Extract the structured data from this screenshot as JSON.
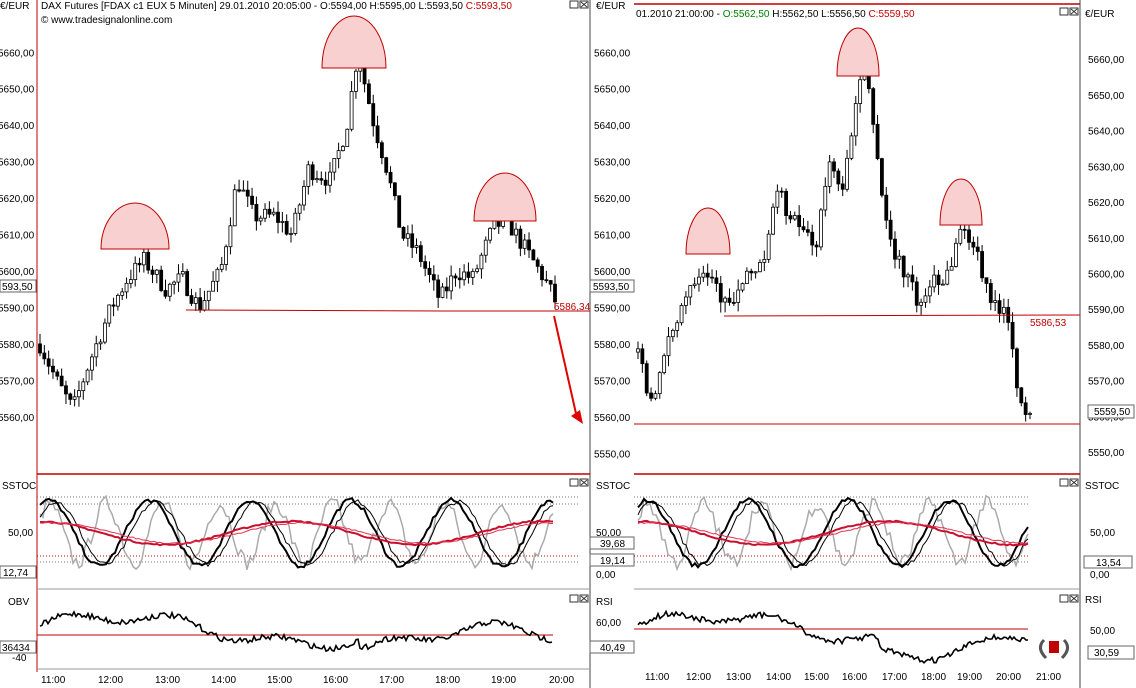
{
  "left_chart": {
    "title_prefix": "DAX Futures [FDAX c1 EUX  5 Minuten] 29.01.2010 20:05:00 - ",
    "ohlc": "O:5594,00 H:5595,00 L:5593,50",
    "close": "C:5593,50",
    "watermark": "© www.tradesignalonline.com",
    "currency": "€/EUR",
    "price_ticks": [
      "5660,00",
      "5650,00",
      "5640,00",
      "5630,00",
      "5620,00",
      "5610,00",
      "5600,00",
      "5590,00",
      "5580,00",
      "5570,00",
      "5560,00",
      "5550,00"
    ],
    "price_ticks_left": [
      "5660,00",
      "5650,00",
      "5640,00",
      "5630,00",
      "5620,00",
      "5610,00",
      "5600,00",
      "5590,00",
      "5580,00",
      "5570,00",
      "5560,00"
    ],
    "last_price_tag": "593,50",
    "last_price_tag_right": "5593,50",
    "neckline_label": "5586,34",
    "sstoc_label": "SSTOC",
    "sstoc_left_tag": "12,74",
    "sstoc_left_tick": "50,00",
    "sstoc_ticks": [
      "50,00",
      "0,00"
    ],
    "sstoc_tags": [
      "39,68",
      "19,14"
    ],
    "obv_label": "OBV",
    "obv_tag": "36434",
    "obv_tick": "-40",
    "rsi_label": "RSI",
    "rsi_tick": "60,00",
    "rsi_tag": "40,49",
    "time_ticks": [
      "11:00",
      "12:00",
      "13:00",
      "14:00",
      "15:00",
      "16:00",
      "17:00",
      "18:00",
      "19:00",
      "20:00"
    ]
  },
  "right_chart": {
    "header_prefix": "01.2010 21:00:00 - ",
    "open": "O:5562,50",
    "hl": "H:5562,50 L:5556,50",
    "close": "C:5559,50",
    "currency": "€/EUR",
    "price_ticks": [
      "5660,00",
      "5650,00",
      "5640,00",
      "5630,00",
      "5620,00",
      "5610,00",
      "5600,00",
      "5590,00",
      "5580,00",
      "5570,00",
      "5560,00",
      "5550,00"
    ],
    "last_price_tag": "5559,50",
    "neckline_label": "5586,53",
    "sstoc_label": "SSTOC",
    "sstoc_ticks": [
      "50,00",
      "0,00"
    ],
    "sstoc_tag": "13,54",
    "rsi_label": "RSI",
    "rsi_tick": "50,00",
    "rsi_tag": "30,59",
    "time_ticks": [
      "11:00",
      "12:00",
      "13:00",
      "14:00",
      "15:00",
      "16:00",
      "17:00",
      "18:00",
      "19:00",
      "20:00",
      "21:00"
    ]
  },
  "colors": {
    "accent": "#c00000",
    "positive": "#008000",
    "arc_fill": "#f8d0d0",
    "grid": "#999999"
  },
  "chart_data": [
    {
      "type": "candlestick",
      "title": "DAX Futures [FDAX c1 EUX  5 Minuten] 29.01.2010 20:05:00",
      "ylabel": "€/EUR",
      "ylim": [
        5547,
        5667
      ],
      "x": [
        "11:00",
        "12:00",
        "13:00",
        "14:00",
        "15:00",
        "16:00",
        "17:00",
        "18:00",
        "19:00",
        "20:00"
      ],
      "close_path": [
        [
          10.7,
          5580
        ],
        [
          11.0,
          5570
        ],
        [
          11.3,
          5562
        ],
        [
          11.6,
          5575
        ],
        [
          12.0,
          5590
        ],
        [
          12.3,
          5598
        ],
        [
          12.6,
          5603
        ],
        [
          13.0,
          5595
        ],
        [
          13.3,
          5598
        ],
        [
          13.6,
          5590
        ],
        [
          14.0,
          5600
        ],
        [
          14.3,
          5625
        ],
        [
          14.6,
          5615
        ],
        [
          15.0,
          5615
        ],
        [
          15.3,
          5610
        ],
        [
          15.6,
          5628
        ],
        [
          16.0,
          5625
        ],
        [
          16.3,
          5640
        ],
        [
          16.5,
          5660
        ],
        [
          16.8,
          5640
        ],
        [
          17.0,
          5630
        ],
        [
          17.3,
          5610
        ],
        [
          17.6,
          5605
        ],
        [
          18.0,
          5592
        ],
        [
          18.3,
          5600
        ],
        [
          18.6,
          5598
        ],
        [
          19.0,
          5613
        ],
        [
          19.3,
          5612
        ],
        [
          19.6,
          5605
        ],
        [
          19.9,
          5598
        ],
        [
          20.1,
          5592
        ]
      ],
      "neckline": 5586.34,
      "last": 5593.5,
      "indicators": {
        "sstoc": [
          39.68,
          19.14,
          12.74
        ],
        "rsi": 40.49,
        "rsi_level": 60,
        "obv": 36434
      }
    },
    {
      "type": "candlestick",
      "ylabel": "€/EUR",
      "ylim": [
        5547,
        5667
      ],
      "x": [
        "11:00",
        "12:00",
        "13:00",
        "14:00",
        "15:00",
        "16:00",
        "17:00",
        "18:00",
        "19:00",
        "20:00",
        "21:00"
      ],
      "close_path": [
        [
          10.7,
          5578
        ],
        [
          11.0,
          5565
        ],
        [
          11.3,
          5572
        ],
        [
          11.6,
          5585
        ],
        [
          12.0,
          5596
        ],
        [
          12.3,
          5602
        ],
        [
          12.6,
          5600
        ],
        [
          13.0,
          5590
        ],
        [
          13.3,
          5595
        ],
        [
          13.6,
          5600
        ],
        [
          14.0,
          5605
        ],
        [
          14.3,
          5625
        ],
        [
          14.6,
          5615
        ],
        [
          15.0,
          5612
        ],
        [
          15.3,
          5608
        ],
        [
          15.6,
          5630
        ],
        [
          16.0,
          5625
        ],
        [
          16.3,
          5645
        ],
        [
          16.5,
          5660
        ],
        [
          16.8,
          5640
        ],
        [
          17.0,
          5620
        ],
        [
          17.3,
          5605
        ],
        [
          17.6,
          5600
        ],
        [
          18.0,
          5590
        ],
        [
          18.3,
          5600
        ],
        [
          18.6,
          5598
        ],
        [
          19.0,
          5612
        ],
        [
          19.3,
          5610
        ],
        [
          19.6,
          5600
        ],
        [
          19.9,
          5590
        ],
        [
          20.2,
          5592
        ],
        [
          20.4,
          5575
        ],
        [
          20.6,
          5560
        ],
        [
          20.8,
          5559.5
        ]
      ],
      "neckline": 5586.53,
      "support": 5556,
      "last": 5559.5,
      "indicators": {
        "sstoc": 13.54,
        "rsi": 30.59,
        "rsi_level": 50
      }
    }
  ]
}
